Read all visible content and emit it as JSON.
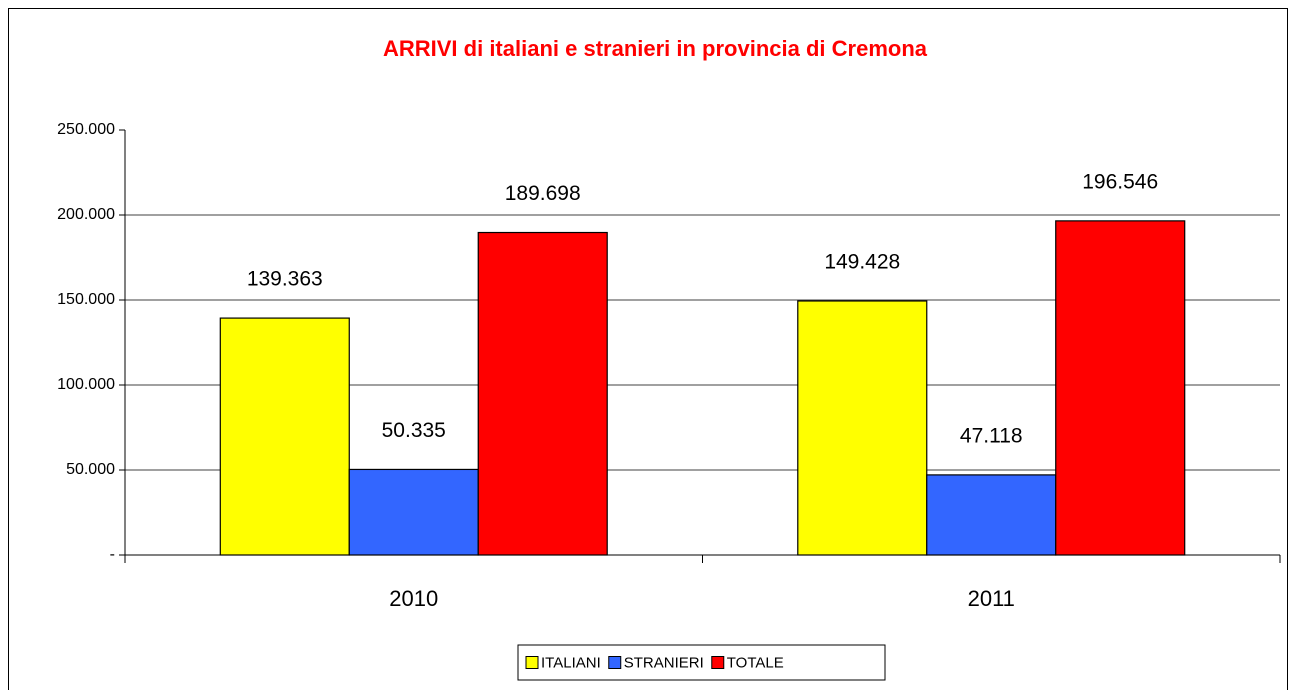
{
  "chart_data": {
    "type": "bar",
    "title": "ARRIVI di italiani e stranieri in provincia di Cremona",
    "categories": [
      "2010",
      "2011"
    ],
    "series": [
      {
        "name": "ITALIANI",
        "color": "#ffff00",
        "values": [
          139363,
          149428
        ],
        "value_labels": [
          "139.363",
          "149.428"
        ]
      },
      {
        "name": "STRANIERI",
        "color": "#3366ff",
        "values": [
          50335,
          47118
        ],
        "value_labels": [
          "50.335",
          "47.118"
        ]
      },
      {
        "name": "TOTALE",
        "color": "#ff0000",
        "values": [
          189698,
          196546
        ],
        "value_labels": [
          "189.698",
          "196.546"
        ]
      }
    ],
    "ylim": [
      0,
      250000
    ],
    "yticks": [
      {
        "value": 0,
        "label": "-"
      },
      {
        "value": 50000,
        "label": "50.000"
      },
      {
        "value": 100000,
        "label": "100.000"
      },
      {
        "value": 150000,
        "label": "150.000"
      },
      {
        "value": 200000,
        "label": "200.000"
      },
      {
        "value": 250000,
        "label": "250.000"
      }
    ],
    "grid": true,
    "legend": "bottom"
  }
}
